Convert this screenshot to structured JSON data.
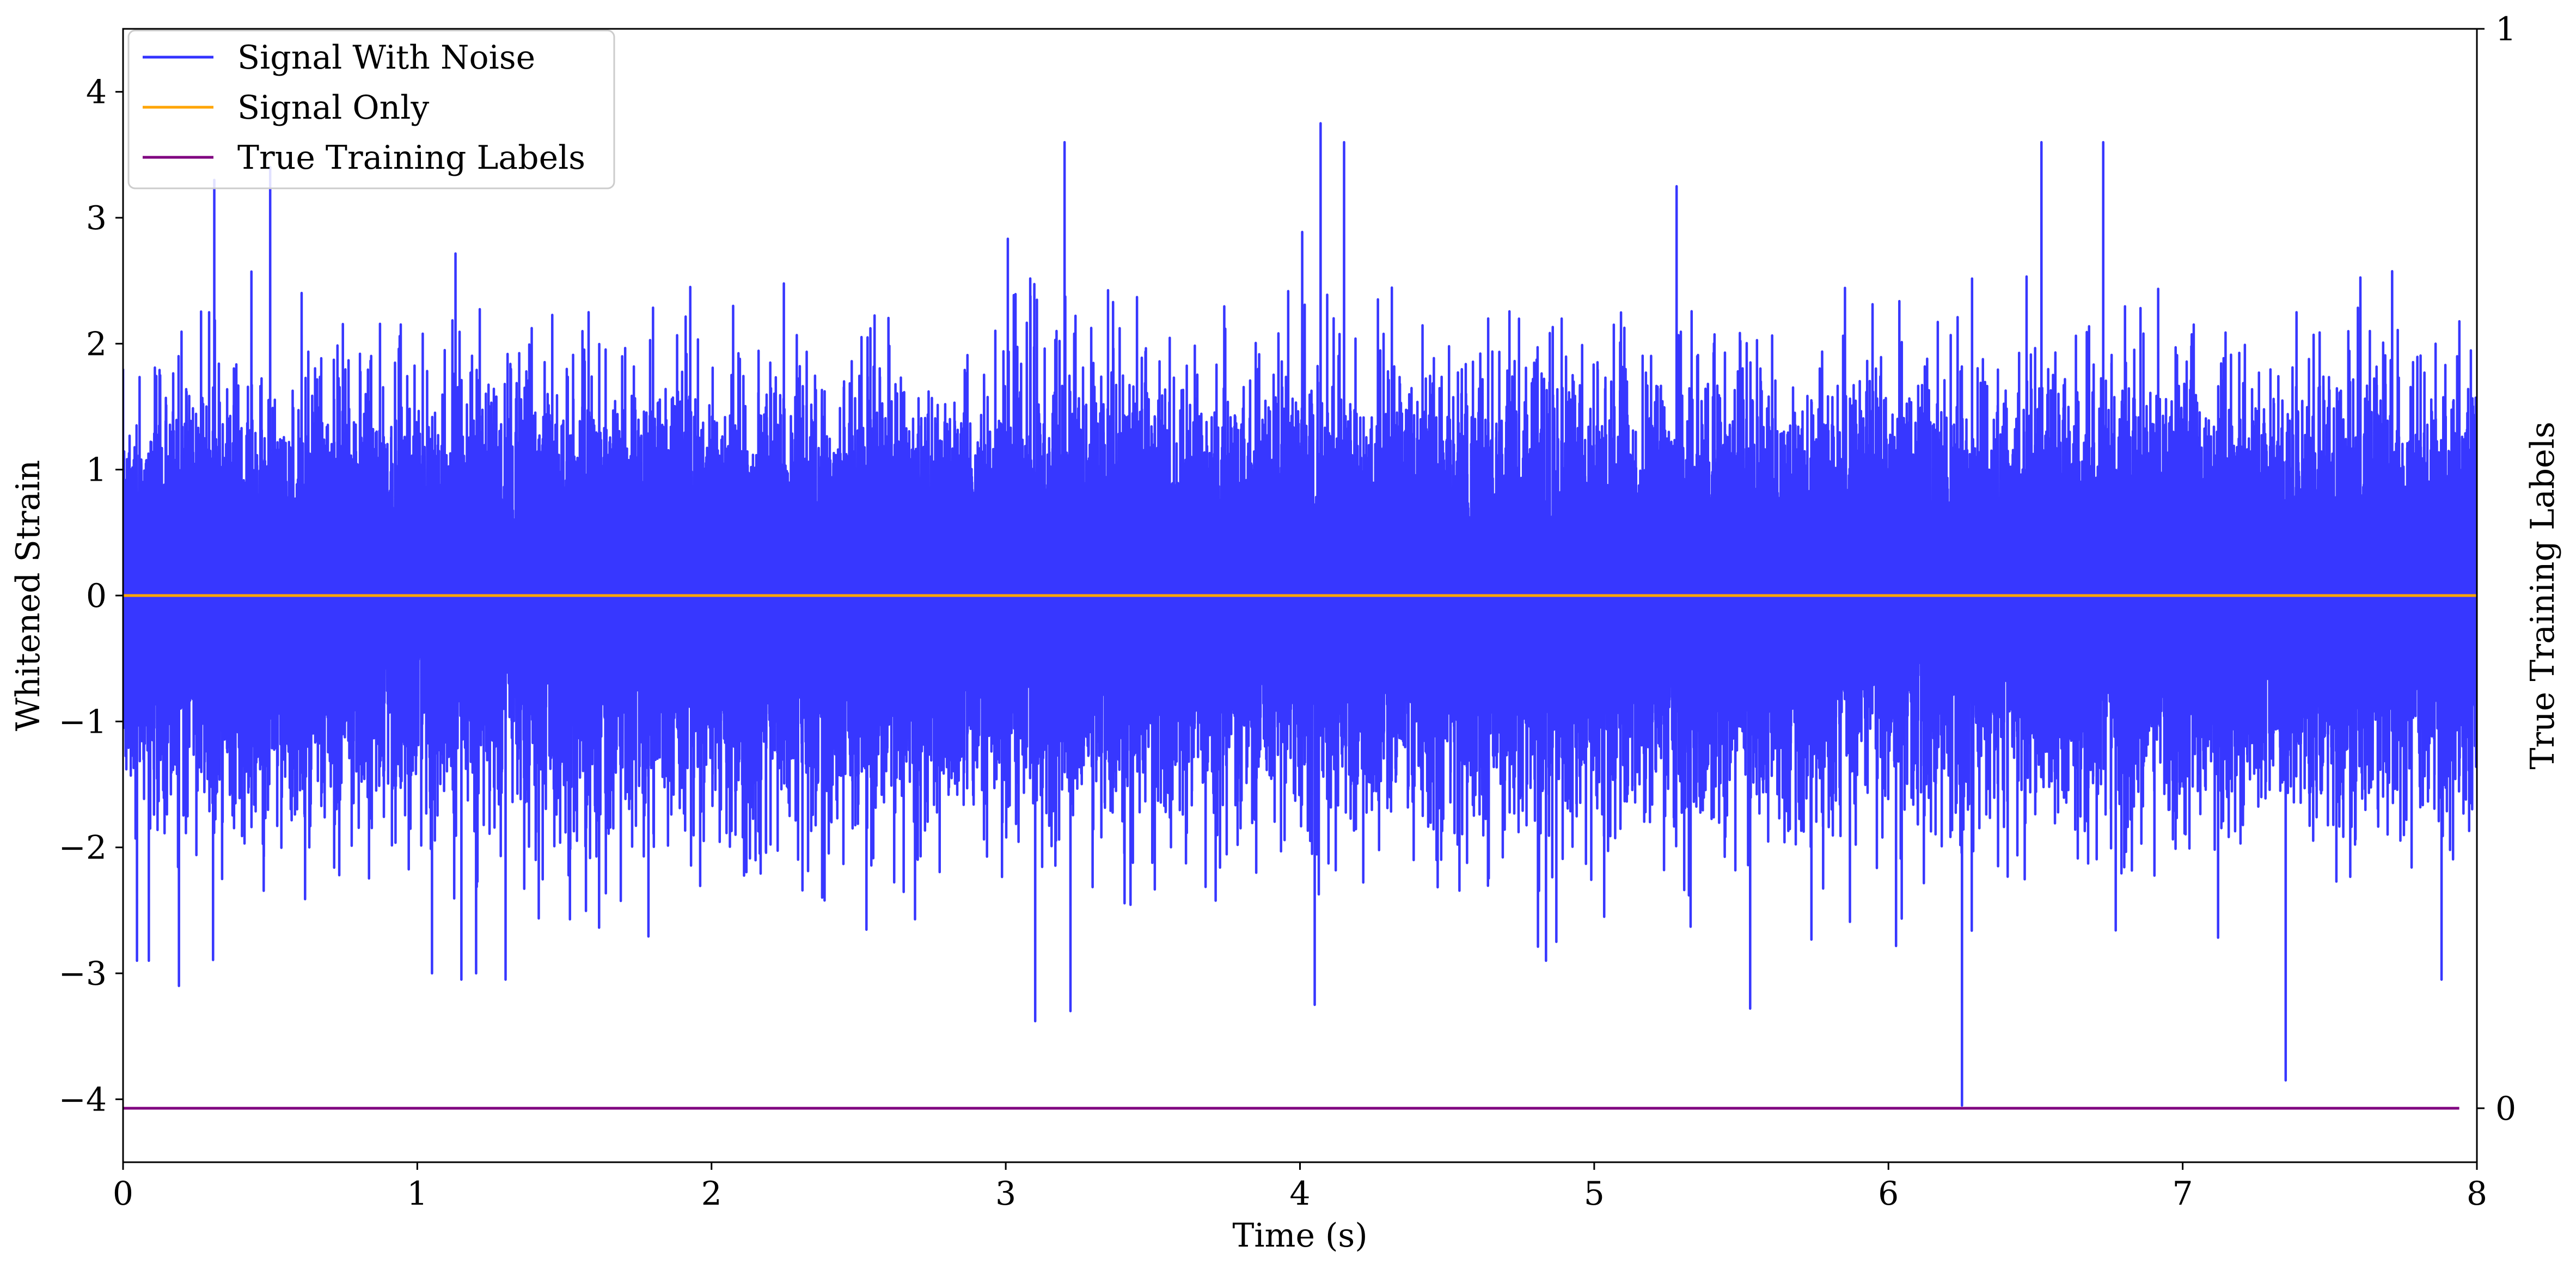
{
  "chart_data": {
    "type": "line",
    "title": "",
    "xlabel": "Time (s)",
    "ylabel": "Whitened Strain",
    "y2label": "True Training Labels",
    "xlim": [
      0,
      8
    ],
    "ylim": [
      -4.5,
      4.5
    ],
    "y2lim": [
      -0.05,
      1.0
    ],
    "x_ticks": [
      0,
      1,
      2,
      3,
      4,
      5,
      6,
      7,
      8
    ],
    "y_ticks": [
      -4,
      -3,
      -2,
      -1,
      0,
      1,
      2,
      3,
      4
    ],
    "y_tick_labels": [
      "−4",
      "−3",
      "−2",
      "−1",
      "0",
      "1",
      "2",
      "3",
      "4"
    ],
    "y2_ticks": [
      0,
      1
    ],
    "grid": false,
    "legend_position": "top-left",
    "series": [
      {
        "name": "Signal With Noise",
        "color": "#3333ff",
        "axis": "left",
        "description_points": {
          "x": [
            0.0,
            0.19,
            0.31,
            0.5,
            1.05,
            1.15,
            1.2,
            1.3,
            2.45,
            3.1,
            3.2,
            3.22,
            4.05,
            4.07,
            4.15,
            5.28,
            5.53,
            6.25,
            6.52,
            6.73,
            7.35,
            7.88
          ],
          "y": [
            1.8,
            -3.1,
            3.3,
            3.4,
            -3.0,
            -3.05,
            -3.0,
            -3.05,
            -0.1,
            -3.38,
            3.6,
            -3.3,
            -3.25,
            3.75,
            3.6,
            3.25,
            -3.28,
            -4.05,
            3.6,
            3.6,
            -3.85,
            -3.05
          ]
        },
        "noise_std": 0.75,
        "samples_per_second": 4096
      },
      {
        "name": "Signal Only",
        "color": "#ffa500",
        "axis": "left",
        "x": [
          0,
          8
        ],
        "y": [
          0,
          0
        ]
      },
      {
        "name": "True Training Labels",
        "color": "#800080",
        "axis": "right",
        "x": [
          0,
          7.94
        ],
        "y": [
          0,
          0
        ]
      }
    ]
  }
}
